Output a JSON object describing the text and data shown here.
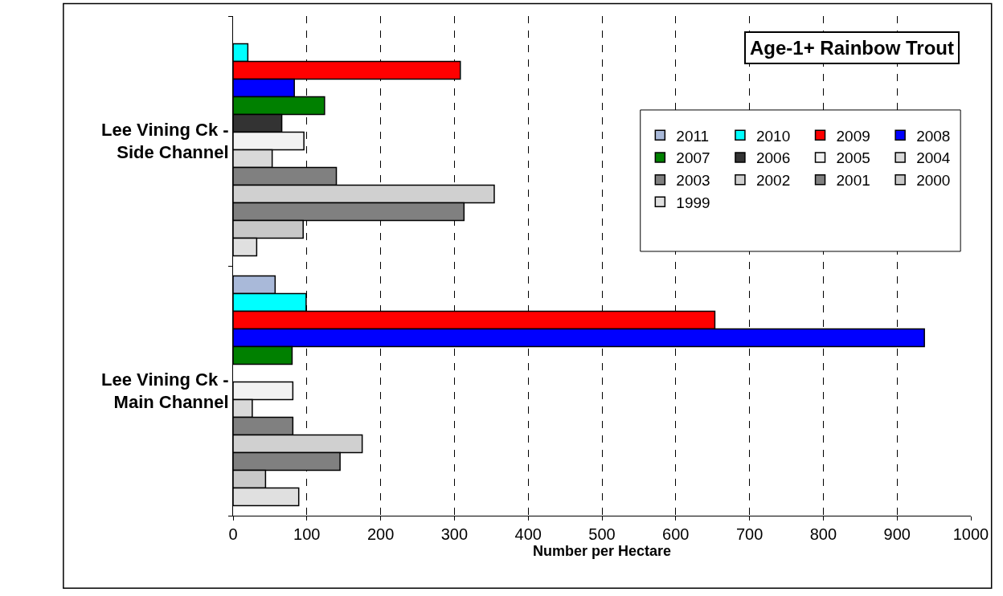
{
  "chart_data": {
    "type": "bar",
    "orientation": "horizontal",
    "title": "Age-1+ Rainbow Trout",
    "xlabel": "Number per Hectare",
    "categories": [
      "Lee Vining Ck - Side Channel",
      "Lee Vining Ck - Main Channel"
    ],
    "series": [
      {
        "name": "2011",
        "color": "#a9b9d9",
        "values": [
          null,
          57
        ]
      },
      {
        "name": "2010",
        "color": "#00ffff",
        "values": [
          20,
          99
        ]
      },
      {
        "name": "2009",
        "color": "#ff0000",
        "values": [
          308,
          653
        ]
      },
      {
        "name": "2008",
        "color": "#0000ff",
        "values": [
          83,
          937
        ]
      },
      {
        "name": "2007",
        "color": "#008000",
        "values": [
          124,
          80
        ]
      },
      {
        "name": "2006",
        "color": "#333333",
        "values": [
          66,
          null
        ]
      },
      {
        "name": "2005",
        "color": "#f2f2f2",
        "values": [
          96,
          81
        ]
      },
      {
        "name": "2004",
        "color": "#d9d9d9",
        "values": [
          53,
          26
        ]
      },
      {
        "name": "2003",
        "color": "#808080",
        "values": [
          140,
          81
        ]
      },
      {
        "name": "2002",
        "color": "#d0d0d0",
        "values": [
          354,
          175
        ]
      },
      {
        "name": "2001",
        "color": "#808080",
        "values": [
          313,
          145
        ]
      },
      {
        "name": "2000",
        "color": "#c8c8c8",
        "values": [
          95,
          44
        ]
      },
      {
        "name": "1999",
        "color": "#e0e0e0",
        "values": [
          32,
          89
        ]
      }
    ],
    "xlim": [
      0,
      1000
    ],
    "xticks": [
      0,
      100,
      200,
      300,
      400,
      500,
      600,
      700,
      800,
      900,
      1000
    ],
    "grid": "x",
    "legend": "top right"
  }
}
